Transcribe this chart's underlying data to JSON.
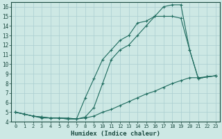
{
  "background_color": "#cde8e4",
  "grid_color": "#aaced0",
  "line_color": "#1e6b5e",
  "xlabel": "Humidex (Indice chaleur)",
  "xlim": [
    -0.5,
    23.5
  ],
  "ylim": [
    4,
    16.5
  ],
  "xticks": [
    0,
    1,
    2,
    3,
    4,
    5,
    6,
    7,
    8,
    9,
    10,
    11,
    12,
    13,
    14,
    15,
    16,
    17,
    18,
    19,
    20,
    21,
    22,
    23
  ],
  "yticks": [
    4,
    5,
    6,
    7,
    8,
    9,
    10,
    11,
    12,
    13,
    14,
    15,
    16
  ],
  "series": [
    {
      "x": [
        0,
        1,
        2,
        3,
        4,
        5,
        6,
        7,
        8,
        9,
        10,
        11,
        12,
        13,
        14,
        15,
        16,
        17,
        18,
        19,
        20,
        21,
        22,
        23
      ],
      "y": [
        5.0,
        4.8,
        4.6,
        4.4,
        4.4,
        4.4,
        4.4,
        4.3,
        4.4,
        4.6,
        5.0,
        5.3,
        5.7,
        6.1,
        6.5,
        6.9,
        7.2,
        7.6,
        8.0,
        8.3,
        8.6,
        8.6,
        8.7,
        8.8
      ]
    },
    {
      "x": [
        0,
        1,
        2,
        3,
        4,
        5,
        6,
        7,
        8,
        9,
        10,
        11,
        12,
        13,
        14,
        15,
        16,
        17,
        18,
        19,
        20,
        21,
        22,
        23
      ],
      "y": [
        5.0,
        4.8,
        4.6,
        4.5,
        4.4,
        4.4,
        4.3,
        4.3,
        4.5,
        5.5,
        8.0,
        10.5,
        11.5,
        12.0,
        13.0,
        14.0,
        15.0,
        16.0,
        16.2,
        16.2,
        11.5,
        8.5,
        8.7,
        8.8
      ]
    },
    {
      "x": [
        0,
        1,
        2,
        3,
        4,
        5,
        6,
        7,
        8,
        9,
        10,
        11,
        12,
        13,
        14,
        15,
        16,
        17,
        18,
        19,
        20,
        21,
        22,
        23
      ],
      "y": [
        5.0,
        4.8,
        4.6,
        4.5,
        4.4,
        4.4,
        4.3,
        4.3,
        6.5,
        8.5,
        10.5,
        11.5,
        12.5,
        13.0,
        14.3,
        14.5,
        15.0,
        15.0,
        15.0,
        14.8,
        11.5,
        8.5,
        8.7,
        8.8
      ]
    }
  ]
}
